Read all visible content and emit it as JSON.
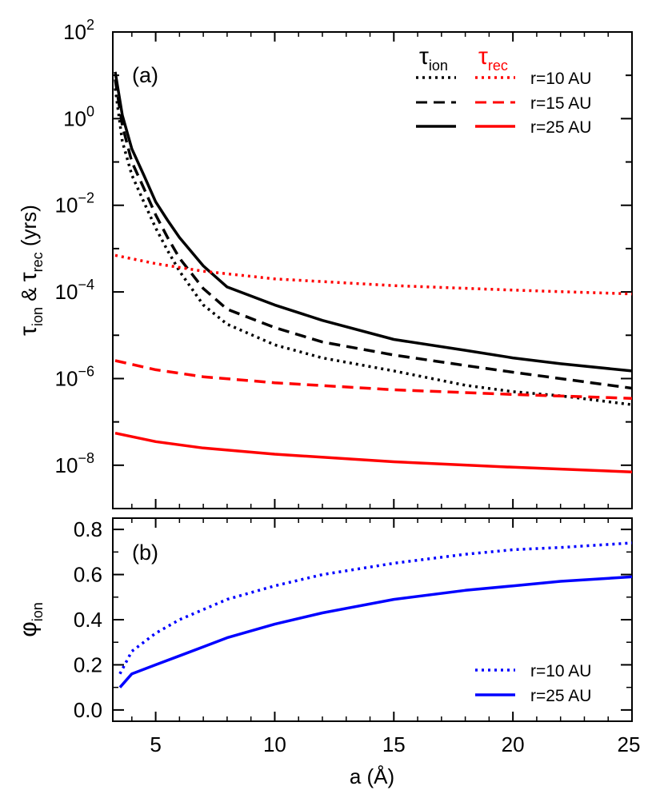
{
  "chart_data": [
    {
      "type": "line",
      "panel_label": "(a)",
      "ylabel": {
        "sym1": "τ",
        "sub1": "ion",
        "mid": " & ",
        "sym2": "τ",
        "sub2": "rec",
        "unit": " (yrs)"
      },
      "y_scale": "log",
      "xlim": [
        3.2,
        25
      ],
      "ylim_log10": [
        -9,
        2
      ],
      "x_ticks": [
        5,
        10,
        15,
        20,
        25
      ],
      "y_tick_exponents": [
        -8,
        -6,
        -4,
        -2,
        0,
        2
      ],
      "y_tick_base": "10",
      "legend_headers": [
        {
          "sym": "τ",
          "sub": "ion",
          "color": "#000000"
        },
        {
          "sym": "τ",
          "sub": "rec",
          "color": "#ff0000"
        }
      ],
      "legend_position": "top-right",
      "legend_labels": [
        "r=10 AU",
        "r=15 AU",
        "r=25 AU"
      ],
      "series": [
        {
          "quantity": "tau_ion",
          "r_label": "r=10 AU",
          "color": "#000000",
          "dash": "dotted",
          "x": [
            3.3,
            3.6,
            4,
            4.5,
            5,
            5.5,
            6,
            7,
            8,
            10,
            12,
            15,
            18,
            20,
            22,
            25
          ],
          "y": [
            5,
            0.3,
            0.05,
            0.012,
            0.003,
            0.0009,
            0.0003,
            5e-05,
            1.8e-05,
            6e-06,
            3e-06,
            1.5e-06,
            7e-07,
            5e-07,
            4e-07,
            2.5e-07
          ]
        },
        {
          "quantity": "tau_ion",
          "r_label": "r=15 AU",
          "color": "#000000",
          "dash": "dashed",
          "x": [
            3.3,
            3.6,
            4,
            4.5,
            5,
            5.5,
            6,
            7,
            8,
            10,
            12,
            15,
            18,
            20,
            22,
            25
          ],
          "y": [
            8,
            0.7,
            0.1,
            0.025,
            0.006,
            0.0018,
            0.0006,
            0.00012,
            4e-05,
            1.5e-05,
            7e-06,
            3.5e-06,
            2e-06,
            1.4e-06,
            1e-06,
            6e-07
          ]
        },
        {
          "quantity": "tau_ion",
          "r_label": "r=25 AU",
          "color": "#000000",
          "dash": "solid",
          "x": [
            3.3,
            3.6,
            4,
            4.5,
            5,
            5.5,
            6,
            7,
            8,
            10,
            12,
            15,
            18,
            20,
            22,
            25
          ],
          "y": [
            12,
            1.2,
            0.2,
            0.05,
            0.012,
            0.0045,
            0.0018,
            0.0004,
            0.00013,
            5e-05,
            2.2e-05,
            8e-06,
            4.5e-06,
            3e-06,
            2.2e-06,
            1.5e-06
          ]
        },
        {
          "quantity": "tau_rec",
          "r_label": "r=10 AU",
          "color": "#ff0000",
          "dash": "dotted",
          "x": [
            3.3,
            5,
            7,
            10,
            15,
            20,
            25
          ],
          "y": [
            0.0007,
            0.00045,
            0.0003,
            0.0002,
            0.00014,
            0.00011,
            9e-05
          ]
        },
        {
          "quantity": "tau_rec",
          "r_label": "r=15 AU",
          "color": "#ff0000",
          "dash": "dashed",
          "x": [
            3.3,
            5,
            7,
            10,
            15,
            20,
            25
          ],
          "y": [
            2.6e-06,
            1.6e-06,
            1.1e-06,
            8e-07,
            5.5e-07,
            4.3e-07,
            3.5e-07
          ]
        },
        {
          "quantity": "tau_rec",
          "r_label": "r=25 AU",
          "color": "#ff0000",
          "dash": "solid",
          "x": [
            3.3,
            5,
            7,
            10,
            15,
            20,
            25
          ],
          "y": [
            5.5e-08,
            3.5e-08,
            2.5e-08,
            1.8e-08,
            1.2e-08,
            9e-09,
            7e-09
          ]
        }
      ]
    },
    {
      "type": "line",
      "panel_label": "(b)",
      "ylabel": {
        "sym1": "φ",
        "sub1": "ion"
      },
      "xlabel": "a (Å)",
      "xlim": [
        3.2,
        25
      ],
      "ylim": [
        -0.05,
        0.85
      ],
      "x_ticks": [
        5,
        10,
        15,
        20,
        25
      ],
      "x_tick_labels": [
        "5",
        "10",
        "15",
        "20",
        "25"
      ],
      "y_ticks": [
        0.0,
        0.2,
        0.4,
        0.6,
        0.8
      ],
      "y_tick_labels": [
        "0.0",
        "0.2",
        "0.4",
        "0.6",
        "0.8"
      ],
      "legend_position": "bottom-right",
      "legend_labels": [
        "r=10 AU",
        "r=25 AU"
      ],
      "series": [
        {
          "r_label": "r=10 AU",
          "color": "#0000ff",
          "dash": "dotted",
          "x": [
            3.5,
            4,
            5,
            6,
            8,
            10,
            12,
            15,
            18,
            20,
            22,
            25
          ],
          "y": [
            0.16,
            0.26,
            0.34,
            0.4,
            0.49,
            0.55,
            0.6,
            0.65,
            0.69,
            0.71,
            0.72,
            0.74
          ]
        },
        {
          "r_label": "r=25 AU",
          "color": "#0000ff",
          "dash": "solid",
          "x": [
            3.5,
            4,
            5,
            6,
            8,
            10,
            12,
            15,
            18,
            20,
            22,
            25
          ],
          "y": [
            0.1,
            0.16,
            0.2,
            0.24,
            0.32,
            0.38,
            0.43,
            0.49,
            0.53,
            0.55,
            0.57,
            0.59
          ]
        }
      ]
    }
  ]
}
